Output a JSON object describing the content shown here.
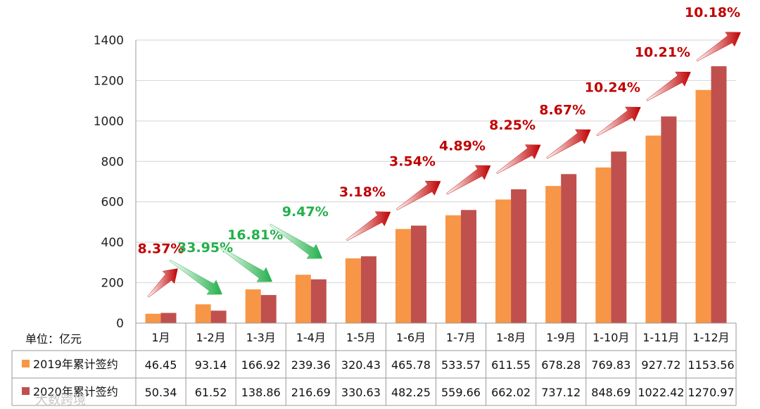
{
  "chart_data": {
    "type": "bar",
    "unit_label": "单位：亿元",
    "categories": [
      "1月",
      "1-2月",
      "1-3月",
      "1-4月",
      "1-5月",
      "1-6月",
      "1-7月",
      "1-8月",
      "1-9月",
      "1-10月",
      "1-11月",
      "1-12月"
    ],
    "series": [
      {
        "name": "2019年累计签约",
        "color": "#F79646",
        "values": [
          46.45,
          93.14,
          166.92,
          239.36,
          320.43,
          465.78,
          533.57,
          611.55,
          678.28,
          769.83,
          927.72,
          1153.56
        ],
        "labels": [
          "46.45",
          "93.14",
          "166.92",
          "239.36",
          "320.43",
          "465.78",
          "533.57",
          "611.55",
          "678.28",
          "769.83",
          "927.72",
          "1153.56"
        ]
      },
      {
        "name": "2020年累计签约",
        "color": "#C0504D",
        "values": [
          50.34,
          61.52,
          138.86,
          216.69,
          330.63,
          482.25,
          559.66,
          662.02,
          737.12,
          848.69,
          1022.42,
          1270.97
        ],
        "labels": [
          "50.34",
          "61.52",
          "138.86",
          "216.69",
          "330.63",
          "482.25",
          "559.66",
          "662.02",
          "737.12",
          "848.69",
          "1022.42",
          "1270.97"
        ]
      }
    ],
    "ylim": [
      0,
      1400
    ],
    "yticks": [
      0,
      200,
      400,
      600,
      800,
      1000,
      1200,
      1400
    ],
    "grid": true,
    "annotations": [
      {
        "text": "8.37%",
        "trend": "up"
      },
      {
        "text": "33.95%",
        "trend": "down"
      },
      {
        "text": "16.81%",
        "trend": "down"
      },
      {
        "text": "9.47%",
        "trend": "down"
      },
      {
        "text": "3.18%",
        "trend": "up"
      },
      {
        "text": "3.54%",
        "trend": "up"
      },
      {
        "text": "4.89%",
        "trend": "up"
      },
      {
        "text": "8.25%",
        "trend": "up"
      },
      {
        "text": "8.67%",
        "trend": "up"
      },
      {
        "text": "10.24%",
        "trend": "up"
      },
      {
        "text": "10.21%",
        "trend": "up"
      },
      {
        "text": "10.18%",
        "trend": "up"
      }
    ],
    "up_color": "#C00000",
    "down_color": "#22B04B"
  },
  "watermark": "大数跨境"
}
